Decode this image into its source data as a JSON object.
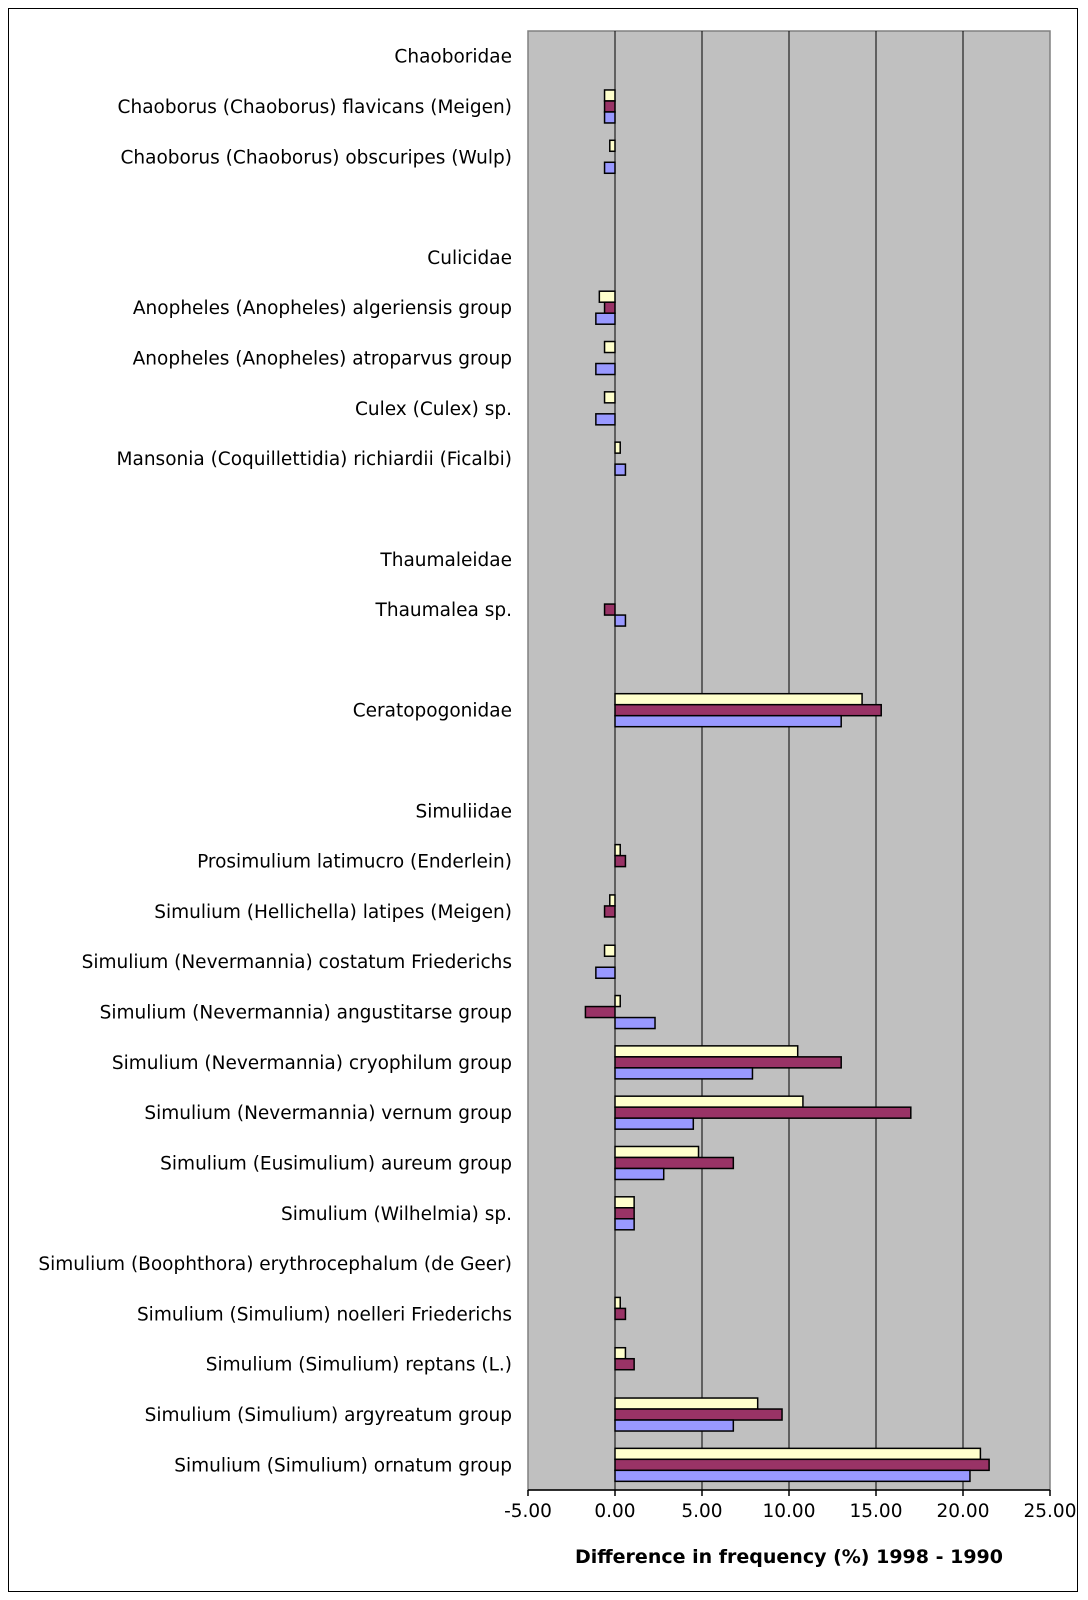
{
  "chart_data": {
    "type": "bar",
    "orientation": "horizontal",
    "xlabel": "Difference in frequency (%) 1998 - 1990",
    "xlim": [
      -5,
      25
    ],
    "xticks": [
      "-5.00",
      "0.00",
      "5.00",
      "10.00",
      "15.00",
      "20.00",
      "25.00"
    ],
    "grid": true,
    "legend": "none",
    "categories": [
      "Chaoboridae",
      "Chaoborus (Chaoborus) flavicans  (Meigen)",
      "Chaoborus (Chaoborus) obscuripes  (Wulp)",
      "",
      "Culicidae",
      "Anopheles (Anopheles) algeriensis group",
      "Anopheles (Anopheles) atroparvus group",
      "Culex (Culex) sp.",
      "Mansonia (Coquillettidia) richiardii  (Ficalbi)",
      "",
      "Thaumaleidae",
      "Thaumalea sp.",
      "",
      "Ceratopogonidae",
      "",
      "Simuliidae",
      "Prosimulium latimucro  (Enderlein)",
      "Simulium (Hellichella) latipes  (Meigen)",
      "Simulium (Nevermannia) costatum  Friederichs",
      "Simulium (Nevermannia) angustitarse group",
      "Simulium (Nevermannia) cryophilum group",
      "Simulium (Nevermannia) vernum group",
      "Simulium (Eusimulium) aureum group",
      "Simulium (Wilhelmia) sp.",
      "Simulium (Boophthora) erythrocephalum  (de Geer)",
      "Simulium (Simulium) noelleri  Friederichs",
      "Simulium (Simulium) reptans  (L.)",
      "Simulium (Simulium) argyreatum group",
      "Simulium (Simulium) ornatum group"
    ],
    "series": [
      {
        "color": "#ffffcc",
        "values": [
          null,
          -0.6,
          -0.3,
          null,
          null,
          -0.9,
          -0.6,
          -0.6,
          0.3,
          null,
          null,
          null,
          null,
          14.2,
          null,
          null,
          0.3,
          -0.3,
          -0.6,
          0.3,
          10.5,
          10.8,
          4.8,
          1.1,
          null,
          0.3,
          0.6,
          8.2,
          21.0
        ]
      },
      {
        "color": "#993366",
        "values": [
          null,
          -0.6,
          null,
          null,
          null,
          -0.6,
          null,
          null,
          null,
          null,
          null,
          -0.6,
          null,
          15.3,
          null,
          null,
          0.6,
          -0.6,
          null,
          -1.7,
          13.0,
          17.0,
          6.8,
          1.1,
          null,
          0.6,
          1.1,
          9.6,
          21.5
        ]
      },
      {
        "color": "#9999ff",
        "values": [
          null,
          -0.6,
          -0.6,
          null,
          null,
          -1.1,
          -1.1,
          -1.1,
          0.6,
          null,
          null,
          0.6,
          null,
          13.0,
          null,
          null,
          null,
          null,
          -1.1,
          2.3,
          7.9,
          4.5,
          2.8,
          1.1,
          null,
          null,
          null,
          6.8,
          20.4
        ]
      }
    ]
  }
}
